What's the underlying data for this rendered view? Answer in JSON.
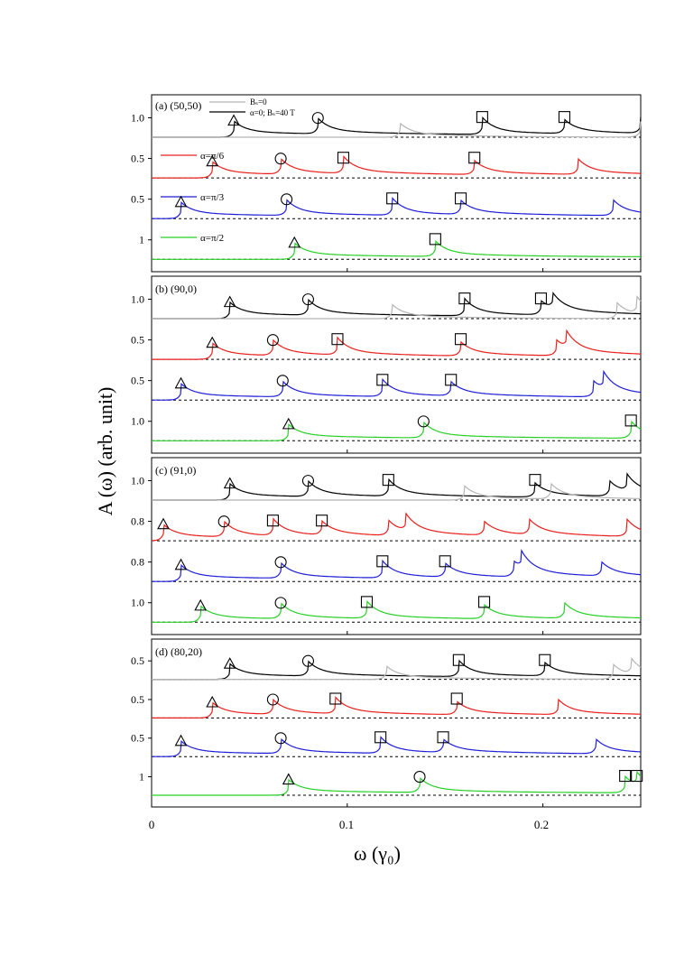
{
  "figure": {
    "ylabel": "A (ω) (arb. unit)",
    "xlabel": "ω (γ₀)",
    "x_tick_labels": [
      "0",
      "0.1",
      "0.2"
    ]
  },
  "legend": {
    "bs0": "Bₛ=0",
    "alpha0": "α=0; Bₛ=40 T",
    "alpha_pi6": "α=π/6",
    "alpha_pi3": "α=π/3",
    "alpha_pi2": "α=π/2"
  },
  "colors": {
    "alpha0": "#000000",
    "alpha_pi6": "#e8201c",
    "alpha_pi3": "#1f1fd6",
    "alpha_pi2": "#27cf27",
    "bs0": "#b5b5b5"
  },
  "chart_data": [
    {
      "type": "line",
      "panel": "(a) (50,50)",
      "xlim": [
        0,
        0.25
      ],
      "series_scale_labels": [
        "1.0",
        "0.5",
        "0.5",
        "1"
      ],
      "series": [
        {
          "name": "α=0; Bₛ=40 T",
          "peaks": [
            0.042,
            0.085,
            0.169,
            0.211,
            0.25
          ]
        },
        {
          "name": "α=π/6",
          "peaks": [
            0.031,
            0.066,
            0.098,
            0.165,
            0.218
          ]
        },
        {
          "name": "α=π/3",
          "peaks": [
            0.015,
            0.069,
            0.123,
            0.158,
            0.236
          ]
        },
        {
          "name": "α=π/2",
          "peaks": [
            0.073,
            0.145
          ]
        },
        {
          "name": "Bₛ=0",
          "peaks": [
            0.127,
            0.25
          ]
        }
      ]
    },
    {
      "type": "line",
      "panel": "(b) (90,0)",
      "xlim": [
        0,
        0.25
      ],
      "series_scale_labels": [
        "1.0",
        "0.5",
        "0.5",
        "1.0"
      ],
      "series": [
        {
          "name": "α=0; Bₛ=40 T",
          "peaks": [
            0.04,
            0.08,
            0.16,
            0.199,
            0.205
          ]
        },
        {
          "name": "α=π/6",
          "peaks": [
            0.031,
            0.062,
            0.095,
            0.158,
            0.207,
            0.212
          ]
        },
        {
          "name": "α=π/3",
          "peaks": [
            0.015,
            0.067,
            0.118,
            0.153,
            0.226,
            0.231
          ]
        },
        {
          "name": "α=π/2",
          "peaks": [
            0.07,
            0.139,
            0.245
          ]
        },
        {
          "name": "Bₛ=0",
          "peaks": [
            0.123,
            0.238,
            0.248
          ]
        }
      ]
    },
    {
      "type": "line",
      "panel": "(c) (91,0)",
      "xlim": [
        0,
        0.25
      ],
      "series_scale_labels": [
        "1.0",
        "0.8",
        "0.8",
        "1.0"
      ],
      "series": [
        {
          "name": "α=0; Bₛ=40 T",
          "peaks": [
            0.04,
            0.08,
            0.121,
            0.196,
            0.234,
            0.243
          ]
        },
        {
          "name": "α=π/6",
          "peaks": [
            0.006,
            0.037,
            0.062,
            0.087,
            0.121,
            0.13,
            0.17,
            0.193,
            0.243
          ]
        },
        {
          "name": "α=π/3",
          "peaks": [
            0.015,
            0.066,
            0.118,
            0.15,
            0.185,
            0.189,
            0.23
          ]
        },
        {
          "name": "α=π/2",
          "peaks": [
            0.025,
            0.066,
            0.11,
            0.17,
            0.211
          ]
        },
        {
          "name": "Bₛ=0",
          "peaks": [
            0.16,
            0.204
          ]
        }
      ]
    },
    {
      "type": "line",
      "panel": "(d) (80,20)",
      "xlim": [
        0,
        0.25
      ],
      "series_scale_labels": [
        "0.5",
        "0.5",
        "0.5",
        "1"
      ],
      "series": [
        {
          "name": "α=0; Bₛ=40 T",
          "peaks": [
            0.04,
            0.08,
            0.157,
            0.201
          ]
        },
        {
          "name": "α=π/6",
          "peaks": [
            0.031,
            0.062,
            0.094,
            0.156,
            0.208
          ]
        },
        {
          "name": "α=π/3",
          "peaks": [
            0.015,
            0.066,
            0.117,
            0.149,
            0.227
          ]
        },
        {
          "name": "α=π/2",
          "peaks": [
            0.07,
            0.137,
            0.242,
            0.248
          ]
        },
        {
          "name": "Bₛ=0",
          "peaks": [
            0.12,
            0.236,
            0.245
          ]
        }
      ]
    }
  ]
}
